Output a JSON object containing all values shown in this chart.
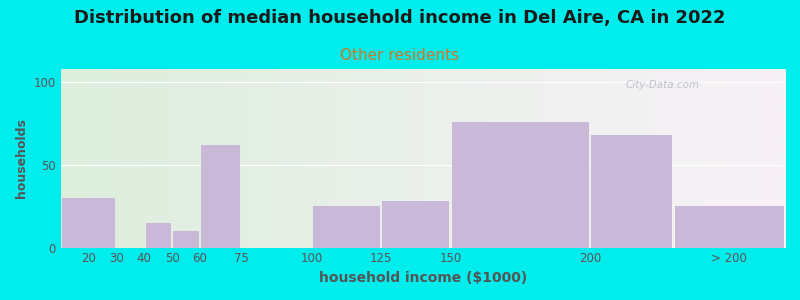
{
  "title": "Distribution of median household income in Del Aire, CA in 2022",
  "subtitle": "Other residents",
  "xlabel": "household income ($1000)",
  "ylabel": "households",
  "bar_color": "#c9b8d8",
  "background_outer": "#00eded",
  "background_inner_left": "#ddeedd",
  "background_inner_right": "#f8f2f8",
  "bar_edges": [
    10,
    30,
    40,
    50,
    60,
    75,
    100,
    125,
    150,
    200,
    230,
    270
  ],
  "values": [
    30,
    0,
    15,
    10,
    62,
    0,
    25,
    28,
    76,
    68,
    25
  ],
  "xtick_positions": [
    20,
    30,
    40,
    50,
    60,
    75,
    100,
    125,
    150,
    200,
    250
  ],
  "xtick_labels": [
    "20",
    "30",
    "40",
    "50",
    "60",
    "75",
    "100",
    "125",
    "150",
    "200",
    "> 200"
  ],
  "ylim": [
    0,
    108
  ],
  "yticks": [
    0,
    50,
    100
  ],
  "title_fontsize": 13,
  "subtitle_fontsize": 11,
  "xlabel_fontsize": 10,
  "ylabel_fontsize": 9,
  "tick_fontsize": 8.5,
  "watermark_text": "City-Data.com"
}
